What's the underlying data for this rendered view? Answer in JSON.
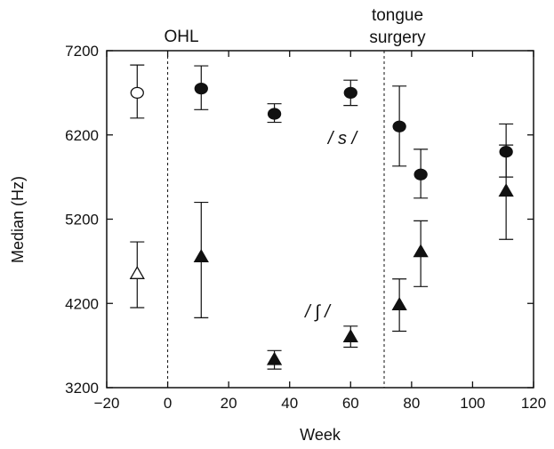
{
  "chart_data": {
    "type": "scatter",
    "title": "",
    "xlabel": "Week",
    "ylabel": "Median (Hz)",
    "xlim": [
      -20,
      120
    ],
    "ylim": [
      3200,
      7200
    ],
    "x_ticks": [
      -20,
      0,
      20,
      40,
      60,
      80,
      100,
      120
    ],
    "y_ticks": [
      3200,
      4200,
      5200,
      6200,
      7200
    ],
    "x_tick_labels": [
      "−20",
      "0",
      "20",
      "40",
      "60",
      "80",
      "100",
      "120"
    ],
    "y_tick_labels": [
      "3200",
      "4200",
      "5200",
      "6200",
      "7200"
    ],
    "grid": false,
    "error_bars": true,
    "annotations": [
      {
        "text": "OHL",
        "x": 3
      },
      {
        "text": "tongue",
        "x": 73
      },
      {
        "text": "surgery",
        "x": 73
      }
    ],
    "vertical_lines": [
      {
        "x": 0,
        "style": "dashed"
      },
      {
        "x": 71,
        "style": "dashed"
      }
    ],
    "series": [
      {
        "name": "/ s /",
        "marker": "circle",
        "points": [
          {
            "x": -10,
            "y": 6700,
            "low": 6400,
            "high": 7030,
            "filled": false
          },
          {
            "x": 11,
            "y": 6750,
            "low": 6500,
            "high": 7020,
            "filled": true
          },
          {
            "x": 35,
            "y": 6450,
            "low": 6350,
            "high": 6570,
            "filled": true
          },
          {
            "x": 60,
            "y": 6700,
            "low": 6550,
            "high": 6850,
            "filled": true
          },
          {
            "x": 76,
            "y": 6300,
            "low": 5830,
            "high": 6780,
            "filled": true
          },
          {
            "x": 83,
            "y": 5730,
            "low": 5450,
            "high": 6030,
            "filled": true
          },
          {
            "x": 111,
            "y": 6000,
            "low": 5700,
            "high": 6330,
            "filled": true
          }
        ]
      },
      {
        "name": "/ ∫ /",
        "marker": "triangle",
        "points": [
          {
            "x": -10,
            "y": 4550,
            "low": 4150,
            "high": 4930,
            "filled": false
          },
          {
            "x": 11,
            "y": 4750,
            "low": 4030,
            "high": 5400,
            "filled": true
          },
          {
            "x": 35,
            "y": 3530,
            "low": 3420,
            "high": 3640,
            "filled": true
          },
          {
            "x": 60,
            "y": 3800,
            "low": 3680,
            "high": 3930,
            "filled": true
          },
          {
            "x": 76,
            "y": 4180,
            "low": 3870,
            "high": 4490,
            "filled": true
          },
          {
            "x": 83,
            "y": 4810,
            "low": 4400,
            "high": 5180,
            "filled": true
          },
          {
            "x": 111,
            "y": 5530,
            "low": 4960,
            "high": 6080,
            "filled": true
          }
        ]
      }
    ]
  },
  "colors": {
    "ink": "#111111",
    "background": "#ffffff"
  }
}
